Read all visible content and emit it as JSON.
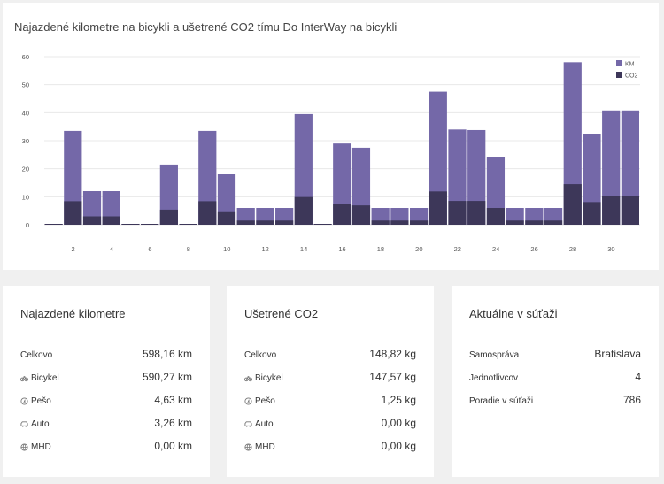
{
  "chart_card": {
    "title": "Najazdené kilometre na bicykli a ušetrené CO2 tímu Do InterWay na bicykli"
  },
  "chart_data": {
    "type": "bar",
    "stacked": false,
    "overlapping": true,
    "title": "Najazdené kilometre na bicykli a ušetrené CO2 tímu Do InterWay na bicykli",
    "x": [
      1,
      2,
      3,
      4,
      5,
      6,
      7,
      8,
      9,
      10,
      11,
      12,
      13,
      14,
      15,
      16,
      17,
      18,
      19,
      20,
      21,
      22,
      23,
      24,
      25,
      26,
      27,
      28,
      29,
      30,
      31
    ],
    "x_tick_labels": [
      "2",
      "4",
      "6",
      "8",
      "10",
      "12",
      "14",
      "16",
      "18",
      "20",
      "22",
      "24",
      "26",
      "28",
      "30"
    ],
    "y_tick_labels": [
      "0",
      "10",
      "20",
      "30",
      "40",
      "50",
      "60"
    ],
    "ylim": [
      0,
      60
    ],
    "grid": true,
    "legend_position": "top-right",
    "colors": {
      "KM": "#7468a8",
      "CO2": "#3d3759"
    },
    "series": [
      {
        "name": "KM",
        "values": [
          0.3,
          33.5,
          12,
          12,
          0.3,
          0.3,
          21.5,
          0.3,
          33.5,
          18,
          6,
          6,
          6,
          39.5,
          0.3,
          29,
          27.5,
          6,
          6,
          6,
          47.5,
          34,
          33.8,
          24,
          6,
          6,
          6,
          58,
          32.5,
          40.8,
          40.8
        ]
      },
      {
        "name": "CO2",
        "values": [
          0.1,
          8.4,
          3,
          3,
          0.1,
          0.1,
          5.4,
          0.1,
          8.4,
          4.5,
          1.5,
          1.5,
          1.5,
          9.9,
          0.1,
          7.3,
          6.9,
          1.5,
          1.5,
          1.5,
          11.9,
          8.5,
          8.5,
          6,
          1.5,
          1.5,
          1.5,
          14.5,
          8.1,
          10.2,
          10.2
        ]
      }
    ]
  },
  "km_card": {
    "title": "Najazdené kilometre",
    "rows": [
      {
        "label": "Celkovo",
        "value": "598,16 km",
        "icon": ""
      },
      {
        "label": "Bicykel",
        "value": "590,27 km",
        "icon": "bicycle-icon"
      },
      {
        "label": "Pešo",
        "value": "4,63 km",
        "icon": "walk-icon"
      },
      {
        "label": "Auto",
        "value": "3,26 km",
        "icon": "car-icon"
      },
      {
        "label": "MHD",
        "value": "0,00 km",
        "icon": "globe-icon"
      }
    ]
  },
  "co2_card": {
    "title": "Ušetrené CO2",
    "rows": [
      {
        "label": "Celkovo",
        "value": "148,82 kg",
        "icon": ""
      },
      {
        "label": "Bicykel",
        "value": "147,57 kg",
        "icon": "bicycle-icon"
      },
      {
        "label": "Pešo",
        "value": "1,25 kg",
        "icon": "walk-icon"
      },
      {
        "label": "Auto",
        "value": "0,00 kg",
        "icon": "car-icon"
      },
      {
        "label": "MHD",
        "value": "0,00 kg",
        "icon": "globe-icon"
      }
    ]
  },
  "competition_card": {
    "title": "Aktuálne v súťaži",
    "rows": [
      {
        "label": "Samospráva",
        "value": "Bratislava"
      },
      {
        "label": "Jednotlivcov",
        "value": "4"
      },
      {
        "label": "Poradie v súťaži",
        "value": "786"
      }
    ]
  }
}
